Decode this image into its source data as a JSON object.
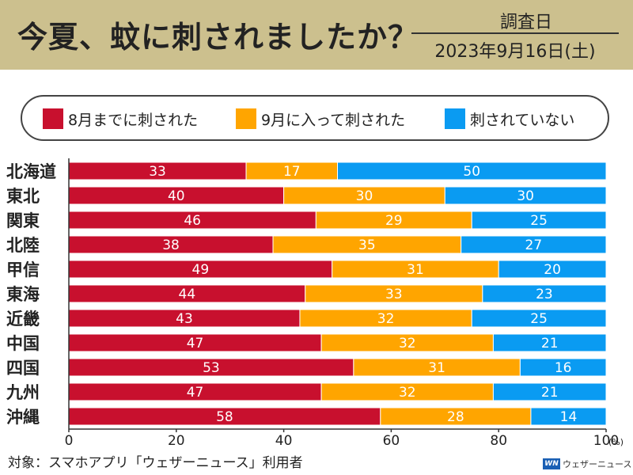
{
  "header": {
    "title": "今夏、蚊に刺されましたか？",
    "survey_label": "調査日",
    "survey_date": "2023年9月16日(土)"
  },
  "colors": {
    "header_bg": "#ccc08e",
    "before_aug": "#c8102e",
    "in_sep": "#ffa500",
    "not_bitten": "#0a9bf2"
  },
  "legend": [
    {
      "label": "8月までに刺された",
      "color": "#c8102e"
    },
    {
      "label": "9月に入って刺された",
      "color": "#ffa500"
    },
    {
      "label": "刺されていない",
      "color": "#0a9bf2"
    }
  ],
  "chart_data": {
    "type": "bar",
    "orientation": "horizontal",
    "stacked": true,
    "categories": [
      "北海道",
      "東北",
      "関東",
      "北陸",
      "甲信",
      "東海",
      "近畿",
      "中国",
      "四国",
      "九州",
      "沖縄"
    ],
    "series": [
      {
        "name": "8月までに刺された",
        "color": "#c8102e",
        "values": [
          33,
          40,
          46,
          38,
          49,
          44,
          43,
          47,
          53,
          47,
          58
        ]
      },
      {
        "name": "9月に入って刺された",
        "color": "#ffa500",
        "values": [
          17,
          30,
          29,
          35,
          31,
          33,
          32,
          32,
          31,
          32,
          28
        ]
      },
      {
        "name": "刺されていない",
        "color": "#0a9bf2",
        "values": [
          50,
          30,
          25,
          27,
          20,
          23,
          25,
          21,
          16,
          21,
          14
        ]
      }
    ],
    "xlim": [
      0,
      100
    ],
    "xticks": [
      "0",
      "20",
      "40",
      "60",
      "80",
      "100"
    ],
    "x_unit": "(%)",
    "grid": false,
    "legend_position": "top"
  },
  "footer": {
    "note": "対象：スマホアプリ「ウェザーニュース」利用者",
    "logo_mark": "WN",
    "logo_text": "ウェザーニュース"
  }
}
